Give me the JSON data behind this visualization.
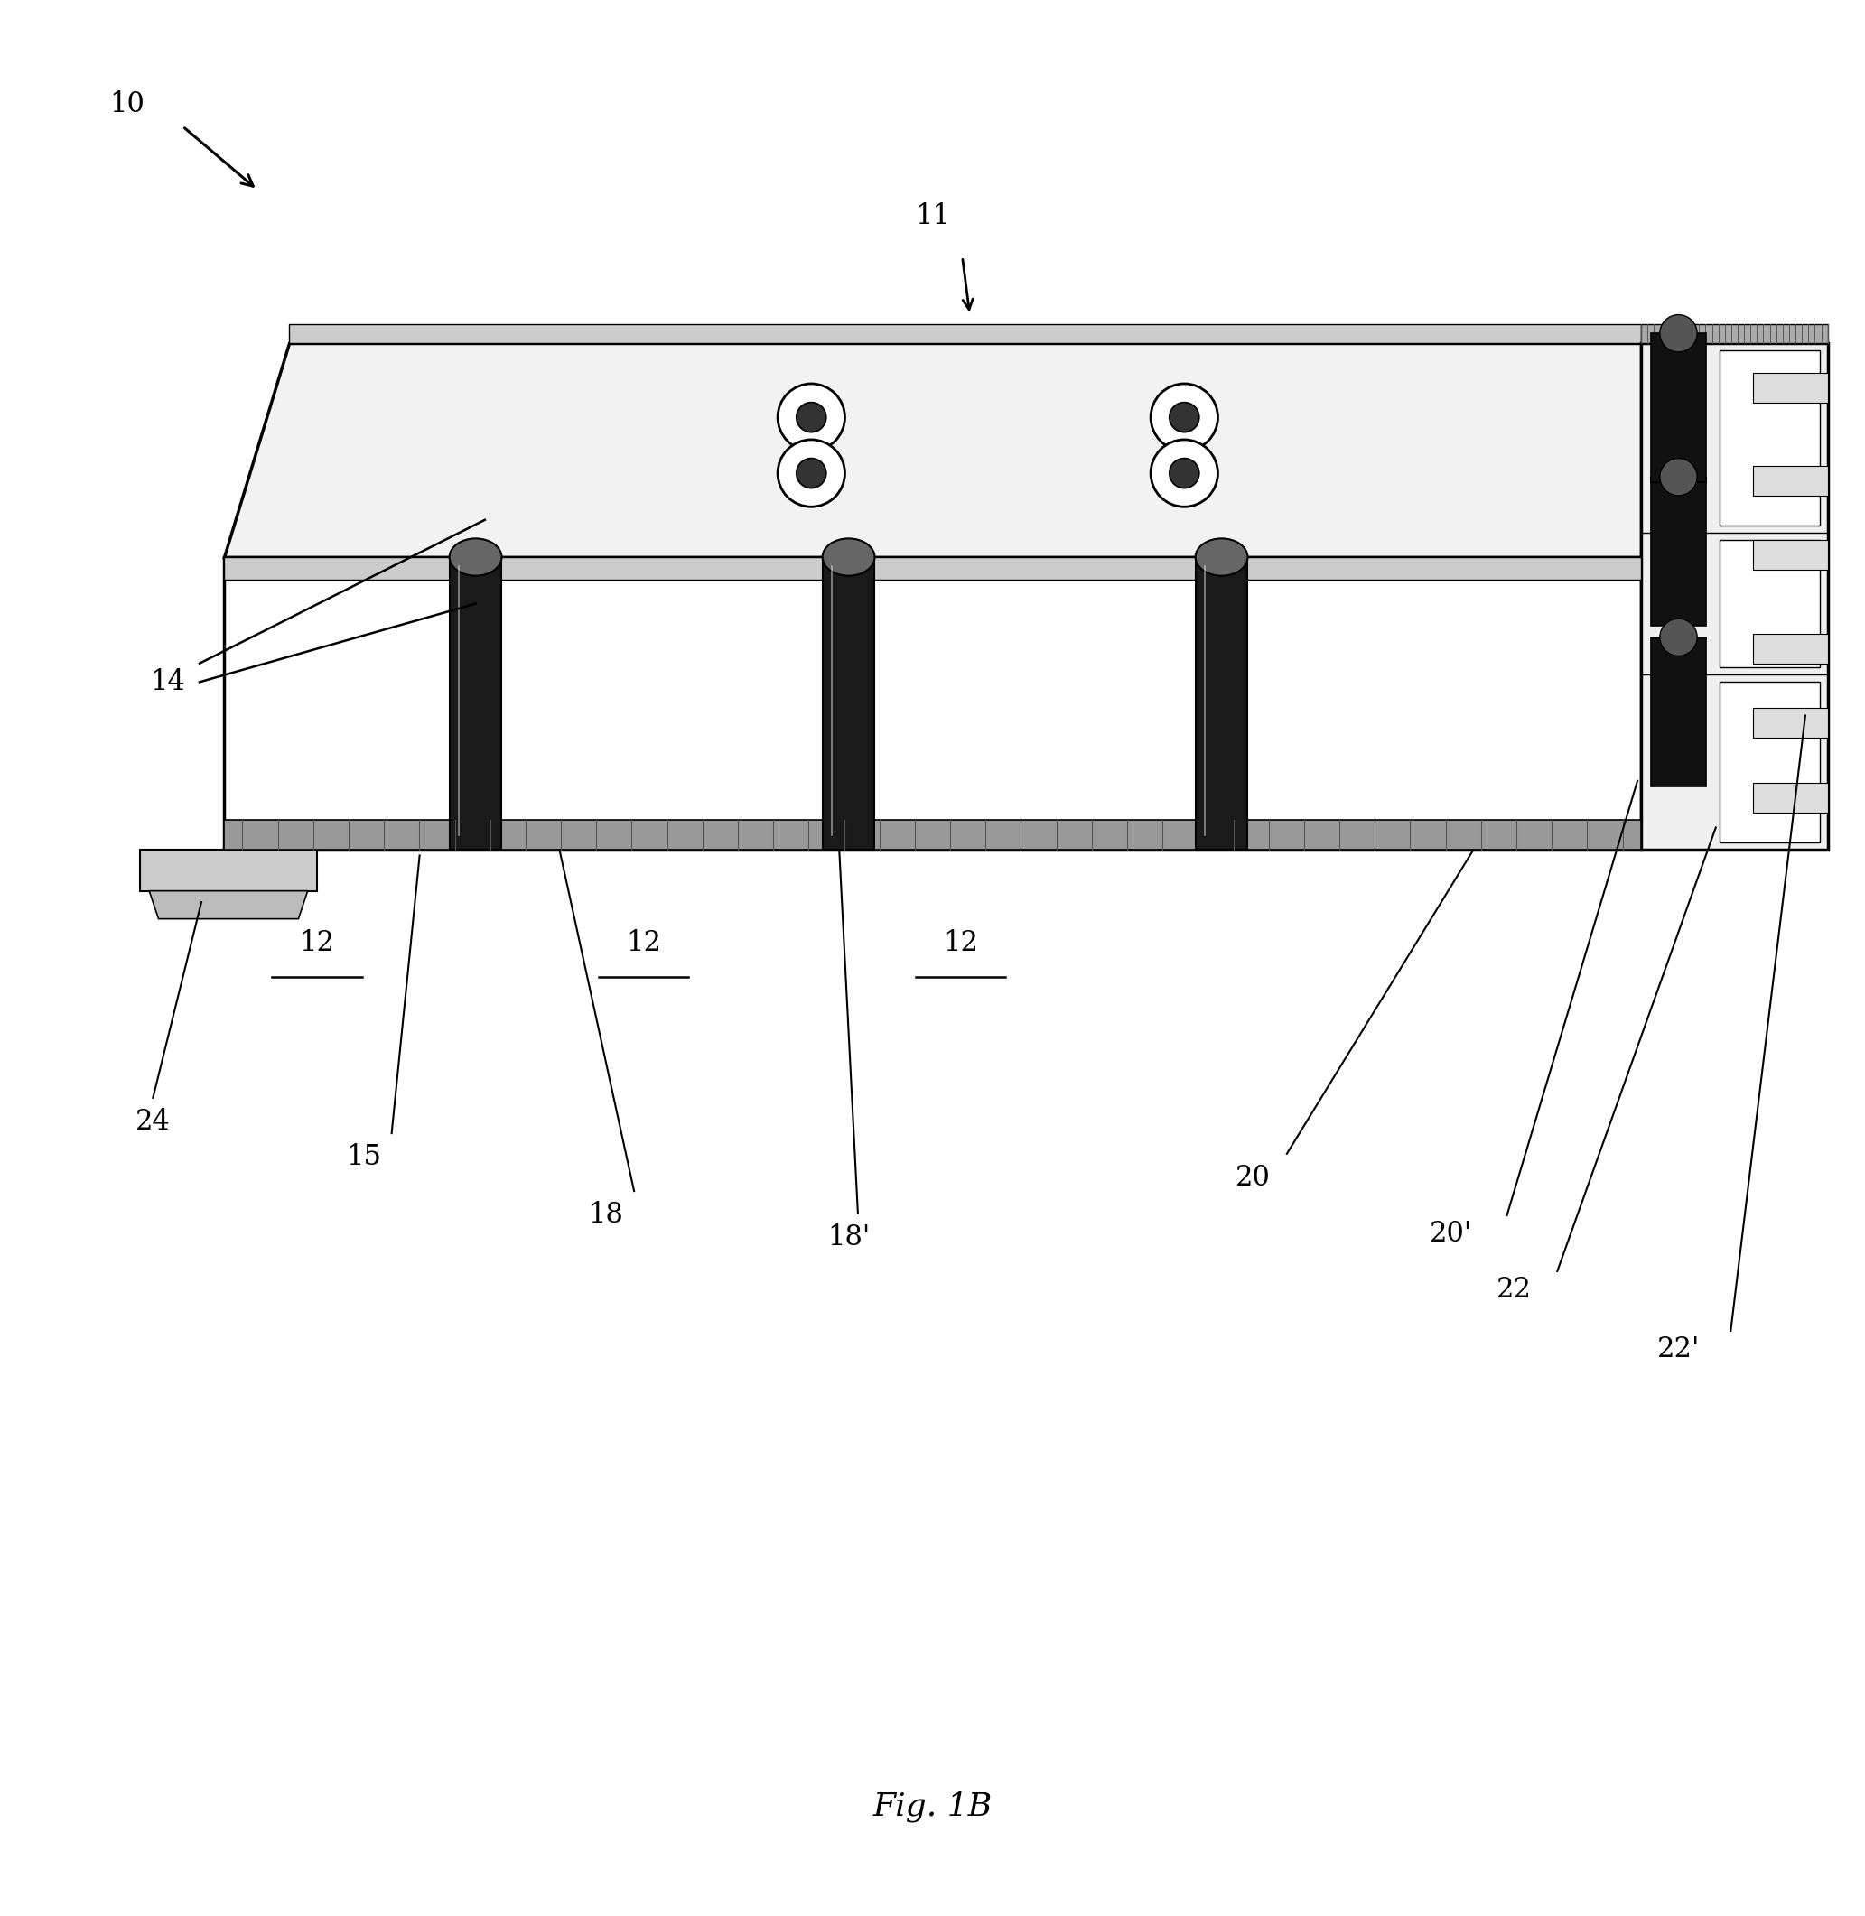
{
  "title": "Fig. 1B",
  "bg_color": "#ffffff",
  "line_color": "#000000",
  "font_size": 22,
  "fig_width": 20.65,
  "fig_height": 21.22
}
